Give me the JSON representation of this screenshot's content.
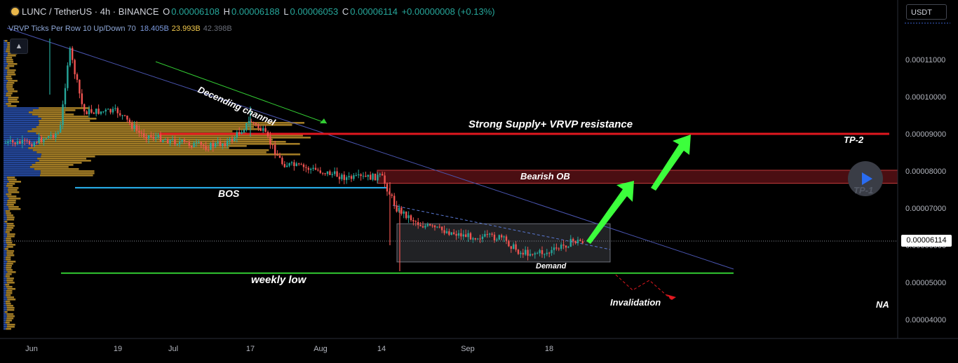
{
  "header": {
    "symbol": "LUNC / TetherUS · 4h · BINANCE",
    "o_label": "O",
    "o_value": "0.00006108",
    "h_label": "H",
    "h_value": "0.00006188",
    "l_label": "L",
    "l_value": "0.00006053",
    "c_label": "C",
    "c_value": "0.00006114",
    "change": "+0.00000008 (+0.13%)"
  },
  "indicator": {
    "name": "VRVP Ticks Per Row 10 Up/Down 70",
    "v1": "18.405B",
    "v2": "23.993B",
    "v3": "42.398B"
  },
  "collapse_icon": "chevron-up-icon",
  "currency": "USDT",
  "current_price": "0.00006114",
  "annotations": {
    "channel": "Decending channel",
    "supply": "Strong Supply+ VRVP resistance",
    "tp2": "TP-2",
    "tp1": "TP-1",
    "bearish_ob": "Bearish OB",
    "bos": "BOS",
    "demand": "Demand",
    "weekly_low": "weekly low",
    "invalidation": "Invalidation",
    "na": "NA"
  },
  "colors": {
    "up": "#26a69a",
    "down": "#ef5350",
    "supply": "#e0181f",
    "bos": "#29b6f6",
    "weekly_low": "#33cc33",
    "channel": "#4a55b0",
    "arrow": "#3cff3c",
    "vrvp_up": "#c99a2e",
    "vrvp_down": "#2a54b5"
  },
  "chart_data": {
    "type": "candlestick",
    "title": "LUNC / TetherUS · 4h · BINANCE",
    "xlabel": "",
    "ylabel": "",
    "x_ticks": [
      "Jun",
      "19",
      "Jul",
      "17",
      "Aug",
      "14",
      "Sep",
      "18"
    ],
    "y_ticks": [
      "0.00004000",
      "0.00005000",
      "0.00006000",
      "0.00007000",
      "0.00008000",
      "0.00009000",
      "0.00010000",
      "0.00011000"
    ],
    "ylim": [
      3.62e-05,
      0.000119
    ],
    "grid": false,
    "price_path": [
      {
        "date": "Jun",
        "price": 8.75e-05
      },
      {
        "date": "Jun 7",
        "price": 9.05e-05
      },
      {
        "date": "Jun 9",
        "price": 0.000113
      },
      {
        "date": "Jun 12",
        "price": 9.6e-05
      },
      {
        "date": "19",
        "price": 9.6e-05
      },
      {
        "date": "Jun 24",
        "price": 9e-05
      },
      {
        "date": "Jul",
        "price": 8.8e-05
      },
      {
        "date": "Jul 8",
        "price": 8.65e-05
      },
      {
        "date": "Jul 13",
        "price": 8.8e-05
      },
      {
        "date": "17",
        "price": 9.35e-05
      },
      {
        "date": "Jul 20",
        "price": 9.05e-05
      },
      {
        "date": "Jul 24",
        "price": 8.2e-05
      },
      {
        "date": "Aug",
        "price": 8e-05
      },
      {
        "date": "Aug 7",
        "price": 7.8e-05
      },
      {
        "date": "14",
        "price": 7.85e-05
      },
      {
        "date": "Aug 17",
        "price": 7e-05
      },
      {
        "date": "Aug 22",
        "price": 6.55e-05
      },
      {
        "date": "Aug 30",
        "price": 6.3e-05
      },
      {
        "date": "Sep",
        "price": 6.25e-05
      },
      {
        "date": "Sep 8",
        "price": 6.2e-05
      },
      {
        "date": "Sep 12",
        "price": 5.8e-05
      },
      {
        "date": "18",
        "price": 5.8e-05
      },
      {
        "date": "Sep 23",
        "price": 6.11e-05
      }
    ],
    "levels": [
      {
        "name": "Strong Supply+ VRVP resistance",
        "price": 9e-05
      },
      {
        "name": "Bearish OB",
        "from": 7.67e-05,
        "to": 8.02e-05
      },
      {
        "name": "BOS",
        "price": 7.55e-05
      },
      {
        "name": "Demand",
        "from": 5.55e-05,
        "to": 6.58e-05
      },
      {
        "name": "weekly low",
        "price": 5.25e-05
      }
    ]
  }
}
